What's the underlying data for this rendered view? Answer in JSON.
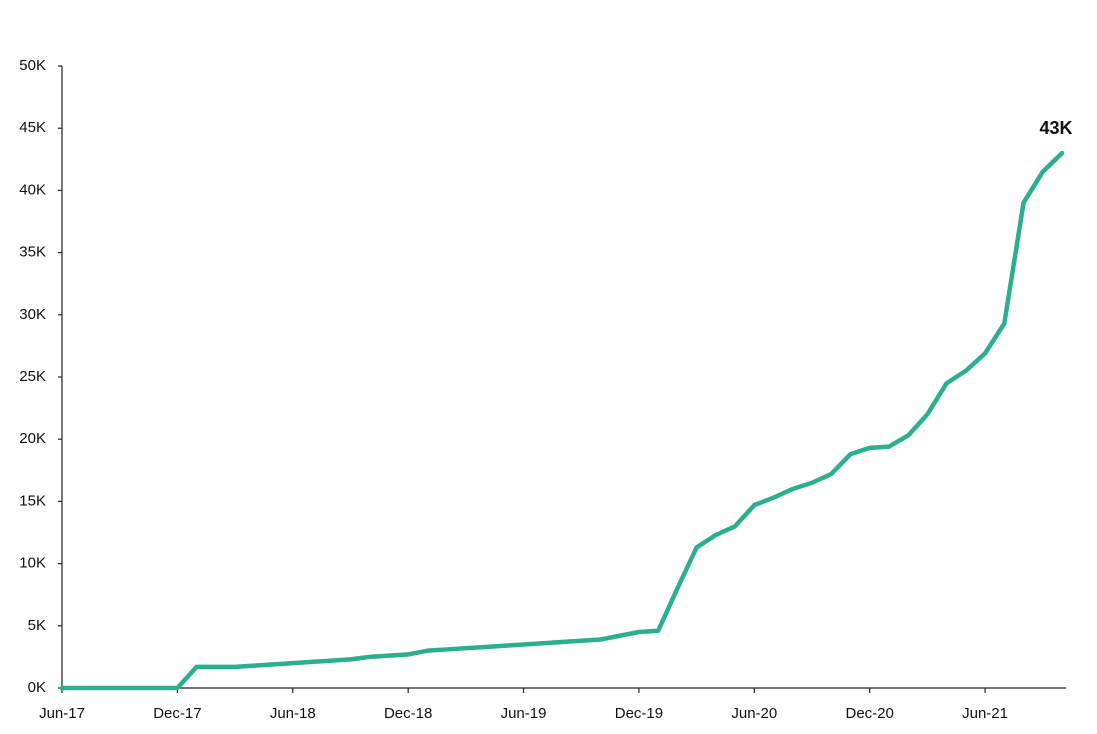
{
  "chart_data": {
    "type": "line",
    "x": [
      "2017-06",
      "2017-07",
      "2017-08",
      "2017-09",
      "2017-10",
      "2017-11",
      "2017-12",
      "2018-01",
      "2018-02",
      "2018-03",
      "2018-04",
      "2018-05",
      "2018-06",
      "2018-07",
      "2018-08",
      "2018-09",
      "2018-10",
      "2018-11",
      "2018-12",
      "2019-01",
      "2019-02",
      "2019-03",
      "2019-04",
      "2019-05",
      "2019-06",
      "2019-07",
      "2019-08",
      "2019-09",
      "2019-10",
      "2019-11",
      "2019-12",
      "2020-01",
      "2020-02",
      "2020-03",
      "2020-04",
      "2020-05",
      "2020-06",
      "2020-07",
      "2020-08",
      "2020-09",
      "2020-10",
      "2020-11",
      "2020-12",
      "2021-01",
      "2021-02",
      "2021-03",
      "2021-04",
      "2021-05",
      "2021-06",
      "2021-07",
      "2021-08",
      "2021-09",
      "2021-10"
    ],
    "series": [
      {
        "color": "#2bb08f",
        "values": [
          0,
          0,
          0,
          0,
          0,
          0,
          0,
          1.7,
          1.7,
          1.7,
          1.8,
          1.9,
          2.0,
          2.1,
          2.2,
          2.3,
          2.5,
          2.6,
          2.7,
          3.0,
          3.1,
          3.2,
          3.3,
          3.4,
          3.5,
          3.6,
          3.7,
          3.8,
          3.9,
          4.2,
          4.5,
          4.6,
          8.0,
          11.3,
          12.3,
          13.0,
          14.7,
          15.3,
          16.0,
          16.5,
          17.2,
          18.8,
          19.3,
          19.4,
          20.3,
          22.0,
          24.5,
          25.5,
          26.9,
          29.3,
          39.0,
          41.5,
          43.0
        ]
      }
    ],
    "xlim": [
      "2017-06",
      "2021-10"
    ],
    "xticks": [
      {
        "value": "2017-06",
        "label": "Jun-17"
      },
      {
        "value": "2017-12",
        "label": "Dec-17"
      },
      {
        "value": "2018-06",
        "label": "Jun-18"
      },
      {
        "value": "2018-12",
        "label": "Dec-18"
      },
      {
        "value": "2019-06",
        "label": "Jun-19"
      },
      {
        "value": "2019-12",
        "label": "Dec-19"
      },
      {
        "value": "2020-06",
        "label": "Jun-20"
      },
      {
        "value": "2020-12",
        "label": "Dec-20"
      },
      {
        "value": "2021-06",
        "label": "Jun-21"
      }
    ],
    "ylim": [
      0,
      50
    ],
    "yticks": [
      {
        "value": 0,
        "label": "0K"
      },
      {
        "value": 5,
        "label": "5K"
      },
      {
        "value": 10,
        "label": "10K"
      },
      {
        "value": 15,
        "label": "15K"
      },
      {
        "value": 20,
        "label": "20K"
      },
      {
        "value": 25,
        "label": "25K"
      },
      {
        "value": 30,
        "label": "30K"
      },
      {
        "value": 35,
        "label": "35K"
      },
      {
        "value": 40,
        "label": "40K"
      },
      {
        "value": 45,
        "label": "45K"
      },
      {
        "value": 50,
        "label": "50K"
      }
    ],
    "annotations": [
      {
        "text": "43K",
        "x": "2021-10",
        "y": 43
      }
    ]
  }
}
